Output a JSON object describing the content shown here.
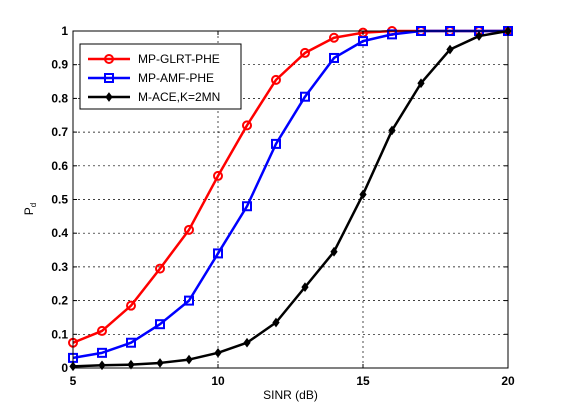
{
  "chart_data": {
    "type": "line",
    "title": "",
    "xlabel": "SINR (dB)",
    "ylabel_main": "P",
    "ylabel_sub": "d",
    "xlim": [
      5,
      20
    ],
    "ylim": [
      0,
      1
    ],
    "xticks": [
      5,
      10,
      15,
      20
    ],
    "xtick_labels": [
      "5",
      "10",
      "15",
      "20"
    ],
    "yticks": [
      0,
      0.1,
      0.2,
      0.3,
      0.4,
      0.5,
      0.6,
      0.7,
      0.8,
      0.9,
      1
    ],
    "ytick_labels": [
      "0",
      "0.1",
      "0.2",
      "0.3",
      "0.4",
      "0.5",
      "0.6",
      "0.7",
      "0.8",
      "0.9",
      "1"
    ],
    "grid": true,
    "legend_position": "top-left",
    "x": [
      5,
      6,
      7,
      8,
      9,
      10,
      11,
      12,
      13,
      14,
      15,
      16,
      17,
      18,
      19,
      20
    ],
    "series": [
      {
        "name": "MP-GLRT-PHE",
        "color": "#ff0000",
        "marker": "circle",
        "values": [
          0.075,
          0.11,
          0.185,
          0.295,
          0.41,
          0.57,
          0.72,
          0.855,
          0.935,
          0.98,
          0.995,
          1.0,
          1.0,
          1.0,
          1.0,
          1.0
        ]
      },
      {
        "name": "MP-AMF-PHE",
        "color": "#0000ff",
        "marker": "square",
        "values": [
          0.03,
          0.045,
          0.075,
          0.13,
          0.2,
          0.34,
          0.48,
          0.665,
          0.805,
          0.92,
          0.97,
          0.99,
          1.0,
          1.0,
          1.0,
          1.0
        ]
      },
      {
        "name": "M-ACE,K=2MN",
        "color": "#000000",
        "marker": "diamond",
        "values": [
          0.005,
          0.008,
          0.01,
          0.015,
          0.025,
          0.045,
          0.075,
          0.135,
          0.24,
          0.345,
          0.515,
          0.705,
          0.845,
          0.945,
          0.985,
          1.0
        ]
      }
    ]
  }
}
